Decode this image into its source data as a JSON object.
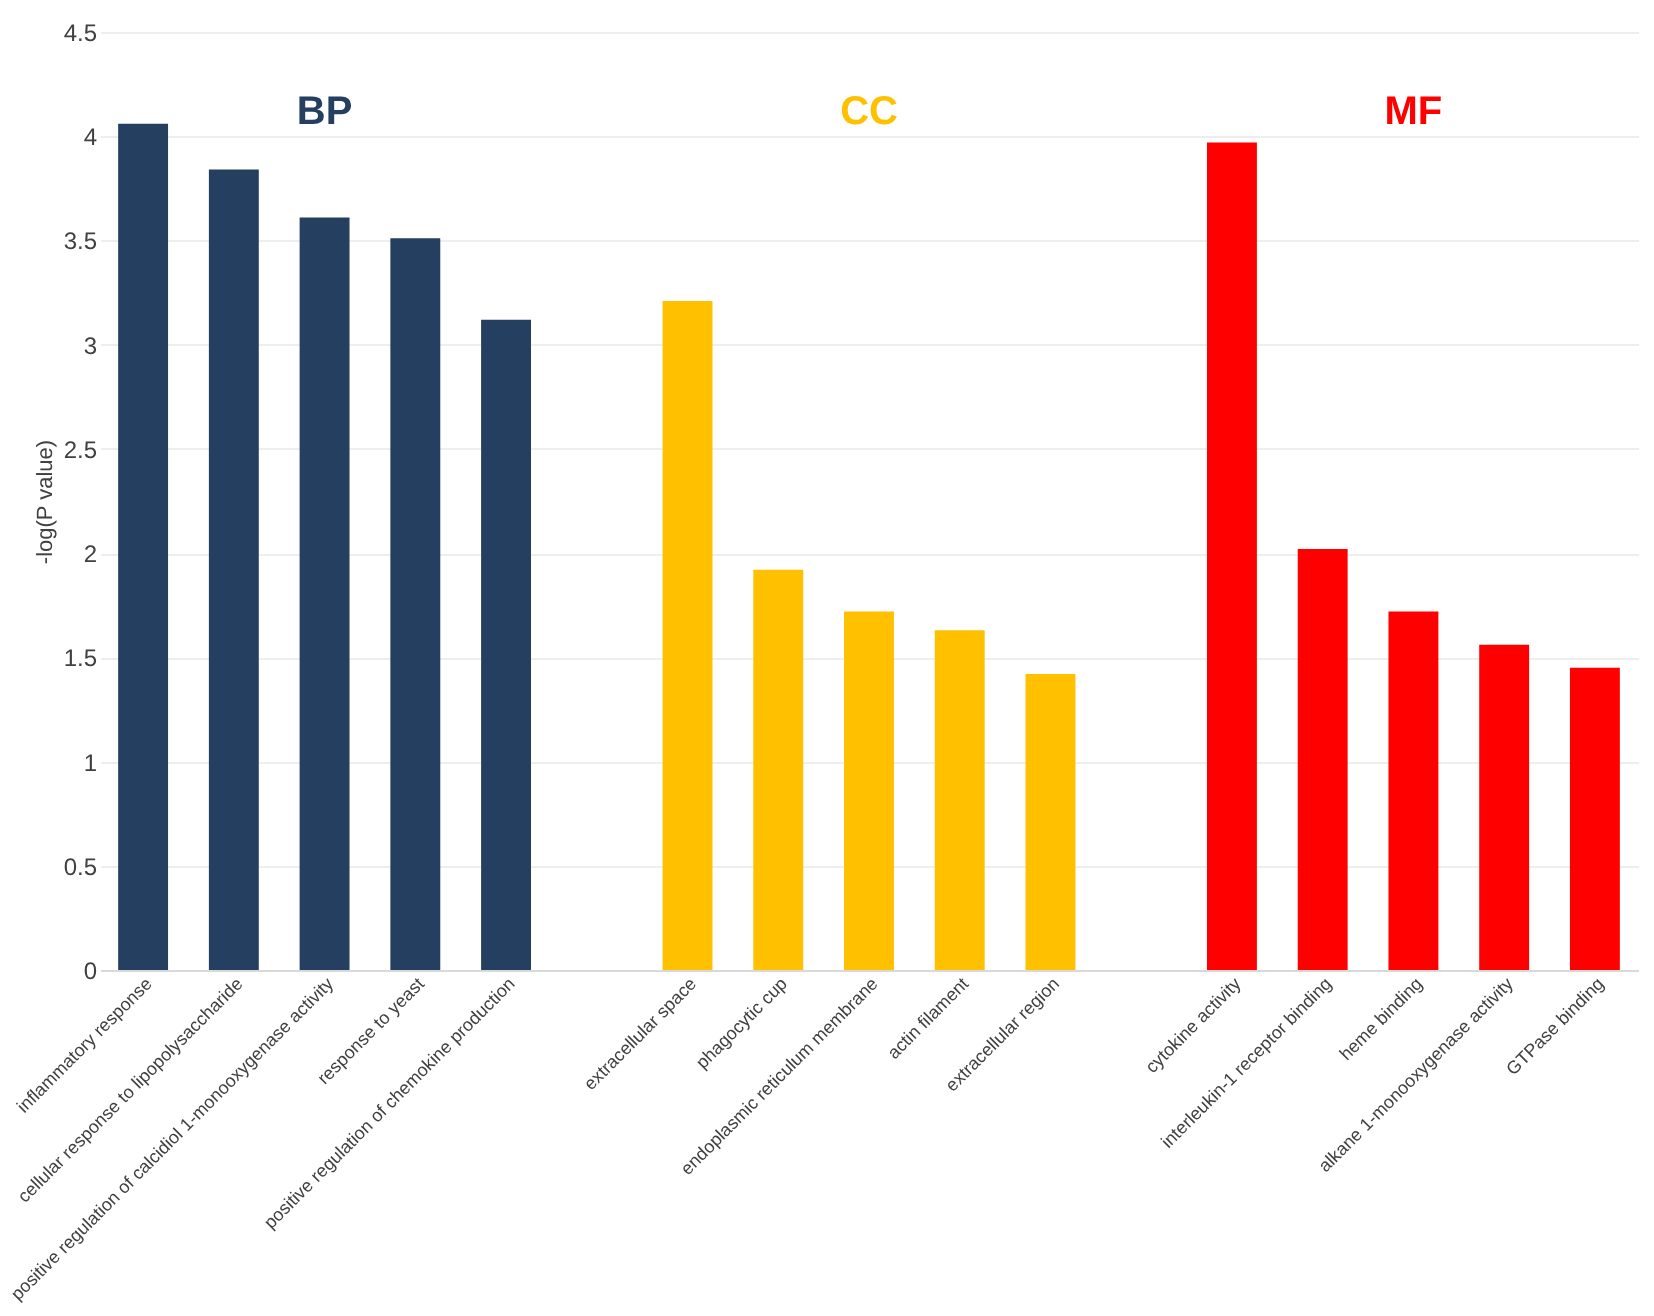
{
  "chart_data": {
    "type": "bar",
    "ylabel": "-log(P value)",
    "categories": [
      "inflammatory response",
      "cellular response to lipopolysaccharide",
      "positive regulation of calcidiol 1-monooxygenase activity",
      "response to yeast",
      "positive regulation of chemokine production",
      null,
      "extracellular space",
      "phagocytic cup",
      "endoplasmic reticulum membrane",
      "actin filament",
      "extracellular region",
      null,
      "cytokine activity",
      "interleukin-1 receptor binding",
      "heme binding",
      "alkane 1-monooxygenase activity",
      "GTPase binding"
    ],
    "series": [
      {
        "name": "BP",
        "color": "#243f60",
        "values": [
          4.06,
          3.84,
          3.61,
          3.51,
          3.12,
          null,
          null,
          null,
          null,
          null,
          null,
          null,
          null,
          null,
          null,
          null,
          null
        ]
      },
      {
        "name": "CC",
        "color": "#ffc000",
        "values": [
          null,
          null,
          null,
          null,
          null,
          null,
          3.21,
          1.92,
          1.72,
          1.63,
          1.42,
          null,
          null,
          null,
          null,
          null,
          null
        ]
      },
      {
        "name": "MF",
        "color": "#ff0000",
        "values": [
          null,
          null,
          null,
          null,
          null,
          null,
          null,
          null,
          null,
          null,
          null,
          null,
          3.97,
          2.02,
          1.72,
          1.56,
          1.45
        ]
      }
    ],
    "ylim": [
      0,
      4.5
    ],
    "yticks": [
      0,
      0.5,
      1,
      1.5,
      2,
      2.5,
      3,
      3.5,
      4,
      4.5
    ],
    "grid": "y"
  }
}
